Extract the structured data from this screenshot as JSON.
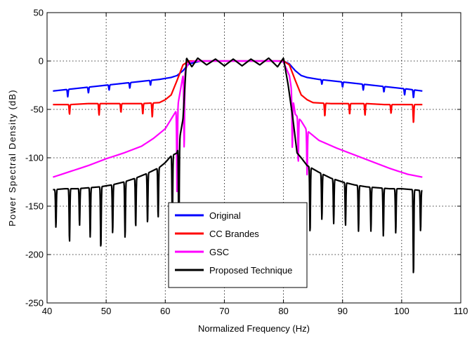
{
  "chart_data": {
    "type": "line",
    "title": "",
    "xlabel": "Normalized Frequency (Hz)",
    "ylabel": "Power Spectral Density (dB)",
    "xlim": [
      40,
      110
    ],
    "ylim": [
      -250,
      50
    ],
    "xticks": [
      40,
      50,
      60,
      70,
      80,
      90,
      100,
      110
    ],
    "yticks": [
      -250,
      -200,
      -150,
      -100,
      -50,
      0,
      50
    ],
    "xtick_labels": [
      "40",
      "50",
      "60",
      "70",
      "80",
      "90",
      "100",
      "110"
    ],
    "ytick_labels": [
      "-250",
      "-200",
      "-150",
      "-100",
      "-50",
      "0",
      "50"
    ],
    "grid": true,
    "legend_position": "bottom-center",
    "series": [
      {
        "name": "Original",
        "color": "#0000ff",
        "x": [
          41,
          44,
          47,
          50,
          53,
          56,
          59,
          61,
          62,
          63,
          64,
          66,
          68,
          70,
          72,
          74,
          76,
          78,
          80,
          81,
          82,
          83,
          84,
          86,
          89,
          92,
          95,
          98,
          101,
          103.5
        ],
        "y": [
          -31,
          -29,
          -27,
          -25,
          -23,
          -21,
          -19,
          -17,
          -15,
          -10,
          -3,
          0,
          0,
          0,
          0,
          0,
          0,
          0,
          0,
          -3,
          -10,
          -15,
          -17,
          -19,
          -21,
          -23,
          -25,
          -27,
          -29,
          -31
        ],
        "dips": [
          [
            43.5,
            -37
          ],
          [
            47,
            -33
          ],
          [
            50.5,
            -30
          ],
          [
            54,
            -28
          ],
          [
            57.5,
            -25
          ],
          [
            86.5,
            -24
          ],
          [
            90,
            -27
          ],
          [
            93.5,
            -30
          ],
          [
            97,
            -32
          ],
          [
            100.5,
            -35
          ],
          [
            102,
            -38
          ]
        ]
      },
      {
        "name": "CC Brandes",
        "color": "#ff0000",
        "x": [
          41,
          44,
          47,
          50,
          53,
          56,
          59,
          60,
          61,
          62,
          63,
          64,
          66,
          68,
          70,
          72,
          74,
          76,
          78,
          80,
          81,
          82,
          83,
          84,
          85,
          88,
          91,
          94,
          97,
          100,
          103.5
        ],
        "y": [
          -45,
          -45,
          -44,
          -44,
          -44,
          -44,
          -43,
          -40,
          -35,
          -20,
          -4,
          0,
          0,
          0,
          0,
          0,
          0,
          0,
          0,
          0,
          -4,
          -20,
          -35,
          -40,
          -43,
          -44,
          -44,
          -44,
          -45,
          -45,
          -45
        ],
        "dips": [
          [
            43.8,
            -55
          ],
          [
            48.8,
            -56
          ],
          [
            52.5,
            -53
          ],
          [
            56.2,
            -55
          ],
          [
            57.8,
            -58
          ],
          [
            87,
            -57
          ],
          [
            91.2,
            -55
          ],
          [
            93.8,
            -56
          ],
          [
            98.2,
            -54
          ],
          [
            102,
            -64
          ]
        ]
      },
      {
        "name": "GSC",
        "color": "#ff00ff",
        "x": [
          41,
          44,
          47,
          50,
          53,
          56,
          58,
          60,
          61,
          62,
          63,
          64,
          65,
          67,
          69,
          71,
          73,
          75,
          77,
          79,
          80,
          81,
          82,
          83,
          84,
          86,
          89,
          92,
          95,
          98,
          101,
          103.5
        ],
        "y": [
          -120,
          -114,
          -108,
          -101,
          -95,
          -88,
          -80,
          -70,
          -60,
          -50,
          -15,
          -1,
          0,
          0,
          0,
          0,
          0,
          0,
          0,
          0,
          -1,
          -15,
          -55,
          -62,
          -72,
          -82,
          -90,
          -97,
          -104,
          -111,
          -117,
          -120
        ],
        "dips": [
          [
            62,
            -138
          ],
          [
            63.2,
            -90
          ],
          [
            81.5,
            -90
          ],
          [
            82.5,
            -105
          ],
          [
            84,
            -118
          ]
        ]
      },
      {
        "name": "Proposed Technique",
        "color": "#000000",
        "x": [
          41,
          43,
          45,
          47,
          49,
          51,
          53,
          55,
          57,
          59,
          60,
          61,
          62,
          63,
          63.6,
          64.5,
          65.5,
          67,
          68.5,
          70,
          71.5,
          73,
          74.5,
          76,
          77.5,
          79,
          80,
          80.8,
          81.6,
          82.3,
          83,
          84,
          86,
          88,
          90,
          92,
          94,
          96,
          98,
          100,
          102,
          103.5
        ],
        "y": [
          -133,
          -132,
          -132,
          -131,
          -130,
          -128,
          -125,
          -121,
          -116,
          -110,
          -105,
          -98,
          -95,
          -60,
          3,
          -6,
          3,
          -4,
          2,
          -5,
          2,
          -5,
          2,
          -4,
          3,
          -6,
          3,
          -25,
          -60,
          -95,
          -100,
          -108,
          -115,
          -121,
          -125,
          -128,
          -130,
          -131,
          -132,
          -132,
          -133,
          -134
        ],
        "dips": [
          [
            41.5,
            -172
          ],
          [
            43.8,
            -187
          ],
          [
            45.5,
            -170
          ],
          [
            47.3,
            -182
          ],
          [
            49.1,
            -194
          ],
          [
            51.1,
            -178
          ],
          [
            53.2,
            -183
          ],
          [
            55,
            -172
          ],
          [
            57,
            -168
          ],
          [
            58.8,
            -162
          ],
          [
            61.2,
            -168
          ],
          [
            62.3,
            -190
          ],
          [
            84.5,
            -178
          ],
          [
            86.5,
            -164
          ],
          [
            88.5,
            -168
          ],
          [
            90.5,
            -170
          ],
          [
            92.7,
            -176
          ],
          [
            94.8,
            -176
          ],
          [
            96.9,
            -181
          ],
          [
            99,
            -178
          ],
          [
            102,
            -222
          ],
          [
            103.2,
            -176
          ]
        ]
      }
    ]
  }
}
